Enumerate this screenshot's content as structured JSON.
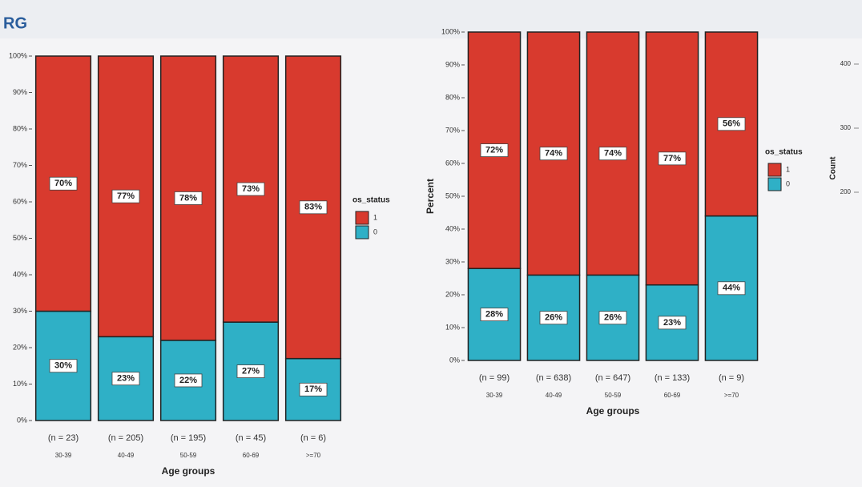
{
  "header_text": "RG",
  "count_axis": {
    "label": "Count",
    "ticks": [
      200,
      300,
      400
    ],
    "lim": [
      100,
      450
    ]
  },
  "chart_data": [
    {
      "type": "stacked_bar",
      "x_label": "Age groups",
      "legend_title": "os_status",
      "categories": [
        "30-39",
        "40-49",
        "50-59",
        "60-69",
        ">=70"
      ],
      "n_labels": [
        "(n = 23)",
        "(n = 205)",
        "(n = 195)",
        "(n = 45)",
        "(n = 6)"
      ],
      "series": [
        {
          "name": "0",
          "color": "#2fb0c6",
          "values": [
            30,
            23,
            22,
            27,
            17
          ],
          "value_labels": [
            "30%",
            "23%",
            "22%",
            "27%",
            "17%"
          ]
        },
        {
          "name": "1",
          "color": "#d83a2e",
          "values": [
            70,
            77,
            78,
            73,
            83
          ],
          "value_labels": [
            "70%",
            "77%",
            "78%",
            "73%",
            "83%"
          ]
        }
      ],
      "ylim": [
        0,
        100
      ],
      "yticks": [
        {
          "value": 0,
          "label": "0%"
        },
        {
          "value": 10,
          "label": "10%"
        },
        {
          "value": 20,
          "label": "20%"
        },
        {
          "value": 30,
          "label": "30%"
        },
        {
          "value": 40,
          "label": "40%"
        },
        {
          "value": 50,
          "label": "50%"
        },
        {
          "value": 60,
          "label": "60%"
        },
        {
          "value": 70,
          "label": "70%"
        },
        {
          "value": 80,
          "label": "80%"
        },
        {
          "value": 90,
          "label": "90%"
        },
        {
          "value": 100,
          "label": "100%"
        }
      ]
    },
    {
      "type": "stacked_bar",
      "x_label": "Age groups",
      "y_label": "Percent",
      "legend_title": "os_status",
      "categories": [
        "30-39",
        "40-49",
        "50-59",
        "60-69",
        ">=70"
      ],
      "n_labels": [
        "(n = 99)",
        "(n = 638)",
        "(n = 647)",
        "(n = 133)",
        "(n = 9)"
      ],
      "series": [
        {
          "name": "0",
          "color": "#2fb0c6",
          "values": [
            28,
            26,
            26,
            23,
            44
          ],
          "value_labels": [
            "28%",
            "26%",
            "26%",
            "23%",
            "44%"
          ]
        },
        {
          "name": "1",
          "color": "#d83a2e",
          "values": [
            72,
            74,
            74,
            77,
            56
          ],
          "value_labels": [
            "72%",
            "74%",
            "74%",
            "77%",
            "56%"
          ]
        }
      ],
      "ylim": [
        0,
        100
      ],
      "yticks": [
        {
          "value": 0,
          "label": "0%"
        },
        {
          "value": 10,
          "label": "10%"
        },
        {
          "value": 20,
          "label": "20%"
        },
        {
          "value": 30,
          "label": "30%"
        },
        {
          "value": 40,
          "label": "40%"
        },
        {
          "value": 50,
          "label": "50%"
        },
        {
          "value": 60,
          "label": "60%"
        },
        {
          "value": 70,
          "label": "70%"
        },
        {
          "value": 80,
          "label": "80%"
        },
        {
          "value": 90,
          "label": "90%"
        },
        {
          "value": 100,
          "label": "100%"
        }
      ]
    }
  ]
}
